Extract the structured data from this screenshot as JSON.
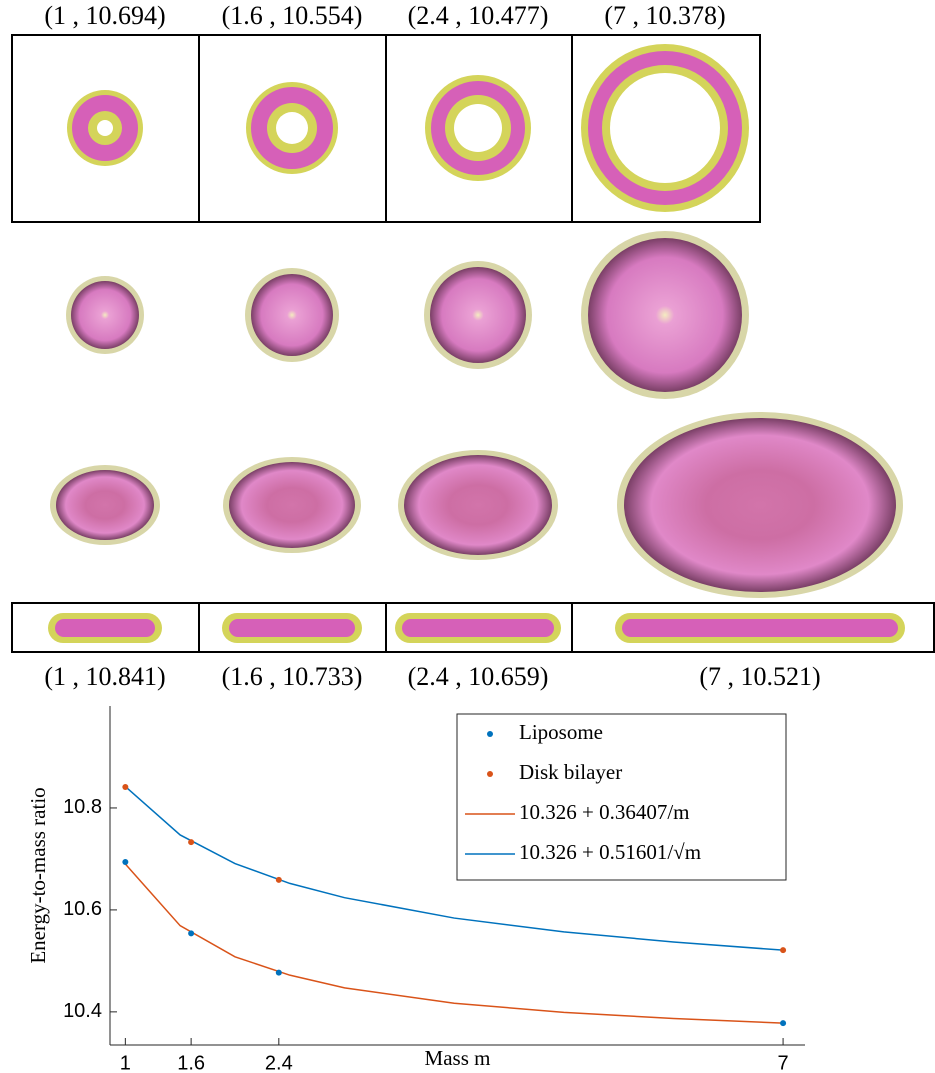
{
  "figure": {
    "top_labels": [
      "(1 , 10.694)",
      "(1.6 , 10.554)",
      "(2.4 , 10.477)",
      "(7 , 10.378)"
    ],
    "bottom_labels": [
      "(1 , 10.841)",
      "(1.6 , 10.733)",
      "(2.4 , 10.659)",
      "(7 , 10.521)"
    ]
  },
  "chart_data": {
    "type": "scatter",
    "xlabel": "Mass m",
    "ylabel": "Energy-to-mass ratio",
    "xlim": [
      0.86,
      7.2
    ],
    "ylim": [
      10.335,
      11.0
    ],
    "xticks": [
      1,
      1.6,
      2.4,
      7
    ],
    "yticks": [
      10.4,
      10.6,
      10.8
    ],
    "legend": "top-right",
    "series": [
      {
        "name": "Liposome",
        "type": "scatter",
        "color": "#0072bd",
        "x": [
          1,
          1.6,
          2.4,
          7
        ],
        "values": [
          10.694,
          10.554,
          10.477,
          10.378
        ]
      },
      {
        "name": "Disk bilayer",
        "type": "scatter",
        "color": "#d95319",
        "x": [
          1,
          1.6,
          2.4,
          7
        ],
        "values": [
          10.841,
          10.733,
          10.659,
          10.521
        ]
      },
      {
        "name": "10.326 + 0.36407/m",
        "type": "line",
        "color": "#d95319",
        "x": [
          1,
          1.5,
          2,
          2.5,
          3,
          4,
          5,
          6,
          7
        ],
        "values": [
          10.69,
          10.569,
          10.508,
          10.472,
          10.447,
          10.417,
          10.399,
          10.387,
          10.378
        ]
      },
      {
        "name": "10.326 + 0.51601/√m",
        "type": "line",
        "color": "#0072bd",
        "x": [
          1,
          1.5,
          2,
          2.5,
          3,
          4,
          5,
          6,
          7
        ],
        "values": [
          10.842,
          10.747,
          10.691,
          10.652,
          10.624,
          10.584,
          10.557,
          10.537,
          10.521
        ]
      }
    ]
  }
}
